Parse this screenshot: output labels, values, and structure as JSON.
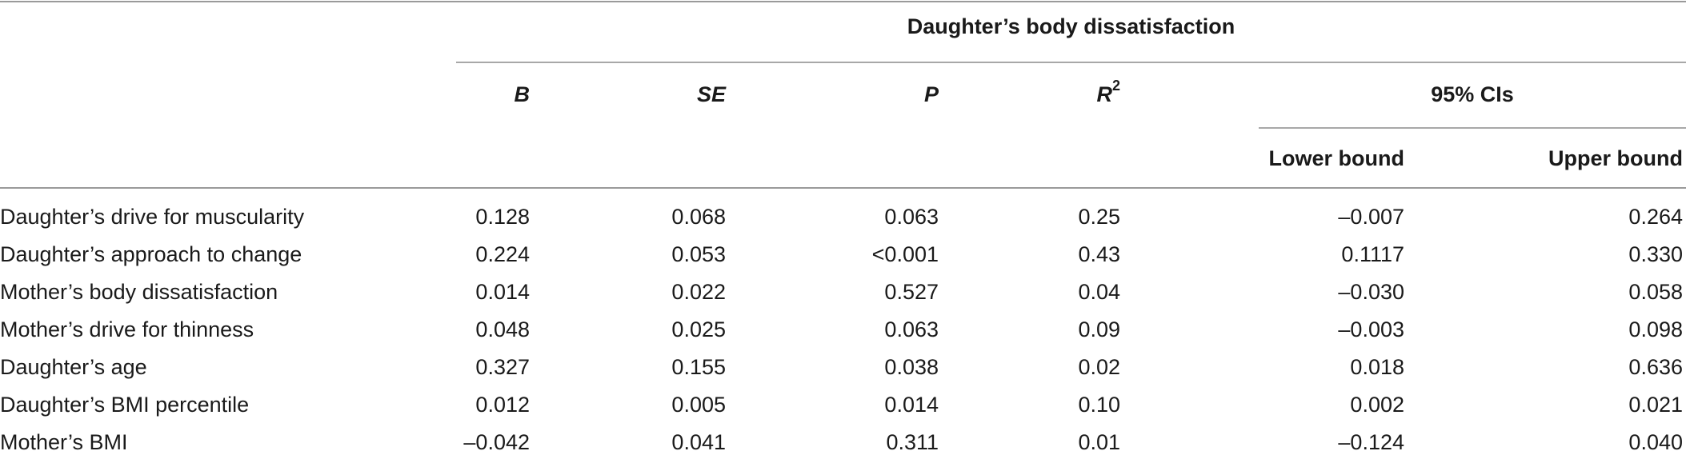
{
  "table": {
    "group_header": "Daughter’s body dissatisfaction",
    "columns": {
      "b": "B",
      "se": "SE",
      "p": "P",
      "r2": "R",
      "r2_sup": "2",
      "ci": "95% CIs",
      "lower": "Lower bound",
      "upper": "Upper bound"
    },
    "rows": [
      {
        "label": "Daughter’s drive for muscularity",
        "b": "0.128",
        "se": "0.068",
        "p": "0.063",
        "r2": "0.25",
        "lower": "–0.007",
        "upper": "0.264"
      },
      {
        "label": "Daughter’s approach to change",
        "b": "0.224",
        "se": "0.053",
        "p": "<0.001",
        "r2": "0.43",
        "lower": "0.1117",
        "upper": "0.330"
      },
      {
        "label": "Mother’s body dissatisfaction",
        "b": "0.014",
        "se": "0.022",
        "p": "0.527",
        "r2": "0.04",
        "lower": "–0.030",
        "upper": "0.058"
      },
      {
        "label": "Mother’s drive for thinness",
        "b": "0.048",
        "se": "0.025",
        "p": "0.063",
        "r2": "0.09",
        "lower": "–0.003",
        "upper": "0.098"
      },
      {
        "label": "Daughter’s age",
        "b": "0.327",
        "se": "0.155",
        "p": "0.038",
        "r2": "0.02",
        "lower": "0.018",
        "upper": "0.636"
      },
      {
        "label": "Daughter’s BMI percentile",
        "b": "0.012",
        "se": "0.005",
        "p": "0.014",
        "r2": "0.10",
        "lower": "0.002",
        "upper": "0.021"
      },
      {
        "label": "Mother’s BMI",
        "b": "–0.042",
        "se": "0.041",
        "p": "0.311",
        "r2": "0.01",
        "lower": "–0.124",
        "upper": "0.040"
      }
    ]
  }
}
